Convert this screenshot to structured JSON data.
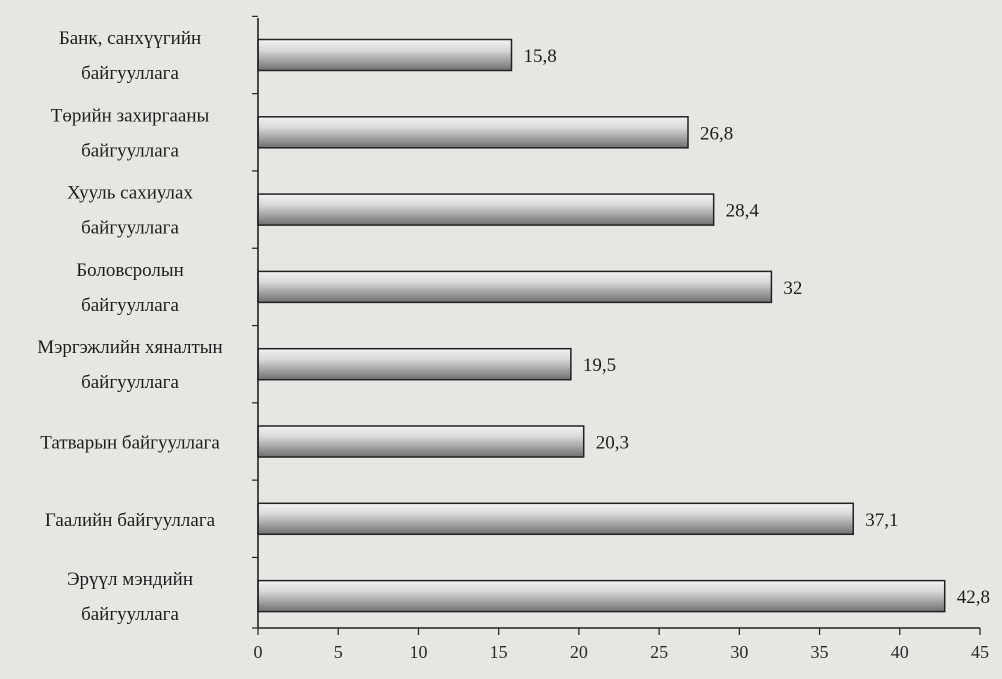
{
  "chart_data": {
    "type": "bar",
    "orientation": "horizontal",
    "categories": [
      [
        "Банк, санхүүгийн",
        "байгууллага"
      ],
      [
        "Төрийн захиргааны",
        "байгууллага"
      ],
      [
        "Хууль сахиулах",
        "байгууллага"
      ],
      [
        "Боловсролын",
        "байгууллага"
      ],
      [
        "Мэргэжлийн хяналтын",
        "байгууллага"
      ],
      [
        "Татварын байгууллага"
      ],
      [
        "Гаалийн байгууллага"
      ],
      [
        "Эрүүл мэндийн",
        "байгууллага"
      ]
    ],
    "values": [
      15.8,
      26.8,
      28.4,
      32,
      19.5,
      20.3,
      37.1,
      42.8
    ],
    "value_labels": [
      "15,8",
      "26,8",
      "28,4",
      "32",
      "19,5",
      "20,3",
      "37,1",
      "42,8"
    ],
    "xlim": [
      0,
      45
    ],
    "xticks": [
      "0",
      "5",
      "10",
      "15",
      "20",
      "25",
      "30",
      "35",
      "40",
      "45"
    ],
    "title": "",
    "xlabel": "",
    "ylabel": "",
    "grid": false,
    "legend": "none",
    "colors": {
      "bar_light": "#f2f2f2",
      "bar_dark": "#6f6f6f",
      "bar_edge": "#222222",
      "axis": "#222222"
    }
  }
}
